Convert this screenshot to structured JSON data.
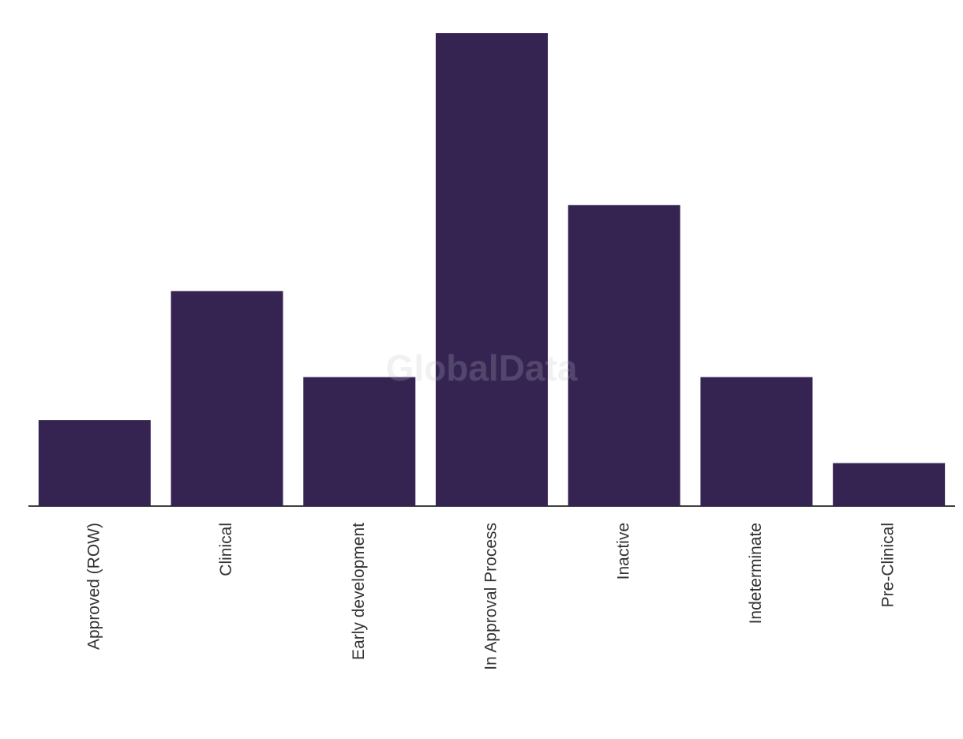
{
  "chart_data": {
    "type": "bar",
    "categories": [
      "Approved (ROW)",
      "Clinical",
      "Early development",
      "In Approval Process",
      "Inactive",
      "Indeterminate",
      "Pre-Clinical"
    ],
    "values": [
      2,
      5,
      3,
      11,
      7,
      3,
      1
    ],
    "color": "#352452",
    "watermark": "GlobalData"
  }
}
